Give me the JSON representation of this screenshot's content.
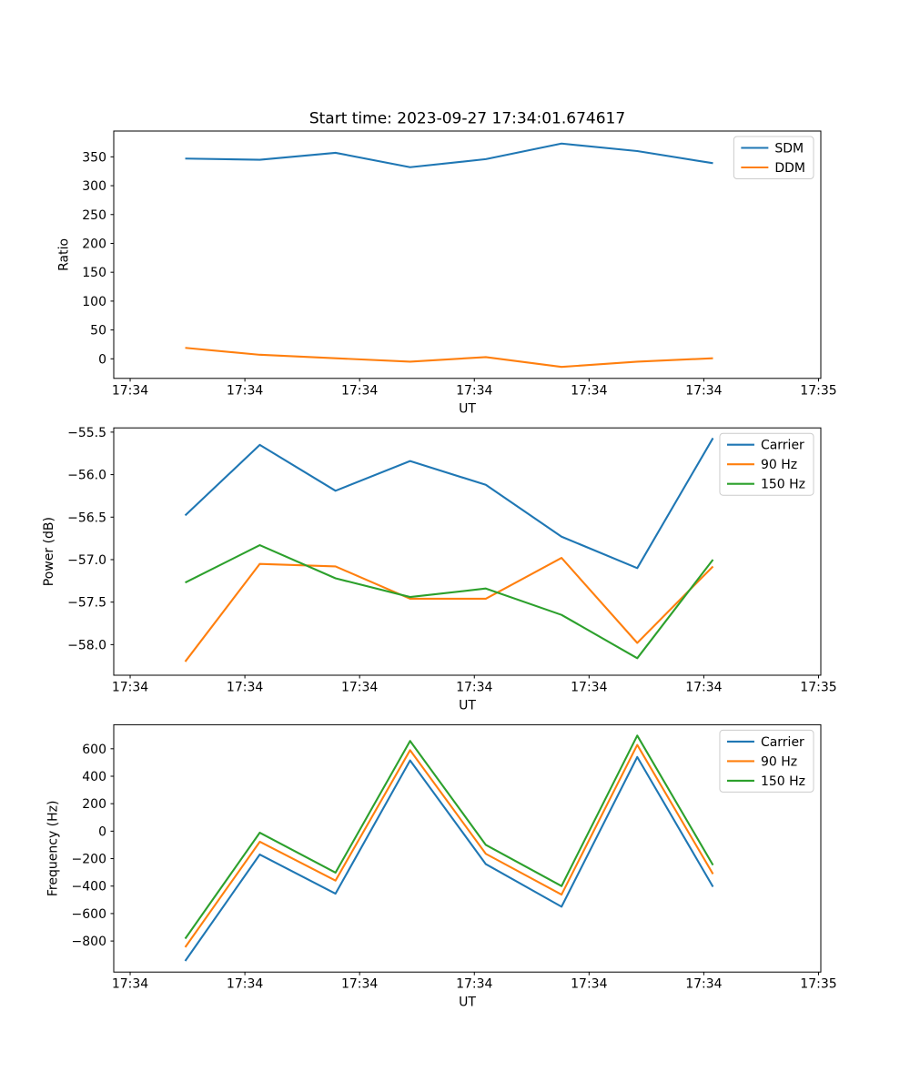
{
  "figure": {
    "title": "Start time: 2023-09-27 17:34:01.674617",
    "background_color": "#ffffff",
    "text_color": "#000000",
    "axes_edge_color": "#000000",
    "legend_border_color": "#cccccc",
    "series_colors": {
      "blue": "#1f77b4",
      "orange": "#ff7f0e",
      "green": "#2ca02c"
    }
  },
  "chart_data": [
    {
      "type": "line",
      "title": "Start time: 2023-09-27 17:34:01.674617",
      "xlabel": "UT",
      "ylabel": "Ratio",
      "grid": false,
      "legend_position": "upper right",
      "x_seconds_after_17_34_00": [
        4.8,
        11.3,
        17.9,
        24.4,
        31.0,
        37.6,
        44.2,
        50.8
      ],
      "xlim_seconds": [
        -1.43,
        60.2
      ],
      "ylim": [
        -33.9,
        394.7
      ],
      "xtick_seconds": [
        0,
        10,
        20,
        30,
        40,
        50,
        60
      ],
      "xtick_labels": [
        "17:34",
        "17:34",
        "17:34",
        "17:34",
        "17:34",
        "17:34",
        "17:35"
      ],
      "ytick_values": [
        0,
        50,
        100,
        150,
        200,
        250,
        300,
        350
      ],
      "ytick_labels": [
        "0",
        "50",
        "100",
        "150",
        "200",
        "250",
        "300",
        "350"
      ],
      "series": [
        {
          "name": "SDM",
          "color": "#1f77b4",
          "values": [
            347,
            345,
            357,
            332,
            346,
            373,
            360,
            339
          ]
        },
        {
          "name": "DDM",
          "color": "#ff7f0e",
          "values": [
            19,
            7,
            1,
            -5,
            3,
            -14,
            -5,
            1
          ]
        }
      ]
    },
    {
      "type": "line",
      "title": "",
      "xlabel": "UT",
      "ylabel": "Power (dB)",
      "grid": false,
      "legend_position": "upper right",
      "x_seconds_after_17_34_00": [
        4.8,
        11.3,
        17.9,
        24.4,
        31.0,
        37.6,
        44.2,
        50.8
      ],
      "xlim_seconds": [
        -1.43,
        60.2
      ],
      "ylim": [
        -58.36,
        -55.45
      ],
      "xtick_seconds": [
        0,
        10,
        20,
        30,
        40,
        50,
        60
      ],
      "xtick_labels": [
        "17:34",
        "17:34",
        "17:34",
        "17:34",
        "17:34",
        "17:34",
        "17:35"
      ],
      "ytick_values": [
        -58.0,
        -57.5,
        -57.0,
        -56.5,
        -56.0,
        -55.5
      ],
      "ytick_labels": [
        "−58.0",
        "−57.5",
        "−57.0",
        "−56.5",
        "−56.0",
        "−55.5"
      ],
      "series": [
        {
          "name": "Carrier",
          "color": "#1f77b4",
          "values": [
            -56.48,
            -55.65,
            -56.19,
            -55.84,
            -56.12,
            -56.73,
            -57.1,
            -55.57
          ]
        },
        {
          "name": "90 Hz",
          "color": "#ff7f0e",
          "values": [
            -58.2,
            -57.05,
            -57.08,
            -57.46,
            -57.46,
            -56.98,
            -57.98,
            -57.08
          ]
        },
        {
          "name": "150 Hz",
          "color": "#2ca02c",
          "values": [
            -57.27,
            -56.83,
            -57.22,
            -57.44,
            -57.34,
            -57.65,
            -58.16,
            -57.0
          ]
        }
      ]
    },
    {
      "type": "line",
      "title": "",
      "xlabel": "UT",
      "ylabel": "Frequency (Hz)",
      "grid": false,
      "legend_position": "upper right",
      "x_seconds_after_17_34_00": [
        4.8,
        11.3,
        17.9,
        24.4,
        31.0,
        37.6,
        44.2,
        50.8
      ],
      "xlim_seconds": [
        -1.43,
        60.2
      ],
      "ylim": [
        -1026,
        775
      ],
      "xtick_seconds": [
        0,
        10,
        20,
        30,
        40,
        50,
        60
      ],
      "xtick_labels": [
        "17:34",
        "17:34",
        "17:34",
        "17:34",
        "17:34",
        "17:34",
        "17:35"
      ],
      "ytick_values": [
        -800,
        -600,
        -400,
        -200,
        0,
        200,
        400,
        600
      ],
      "ytick_labels": [
        "−800",
        "−600",
        "−400",
        "−200",
        "0",
        "200",
        "400",
        "600"
      ],
      "series": [
        {
          "name": "Carrier",
          "color": "#1f77b4",
          "values": [
            -945,
            -170,
            -455,
            515,
            -240,
            -550,
            540,
            -405
          ]
        },
        {
          "name": "90 Hz",
          "color": "#ff7f0e",
          "values": [
            -845,
            -77,
            -360,
            590,
            -165,
            -462,
            628,
            -312
          ]
        },
        {
          "name": "150 Hz",
          "color": "#2ca02c",
          "values": [
            -783,
            -11,
            -302,
            657,
            -100,
            -400,
            696,
            -247
          ]
        }
      ]
    }
  ]
}
